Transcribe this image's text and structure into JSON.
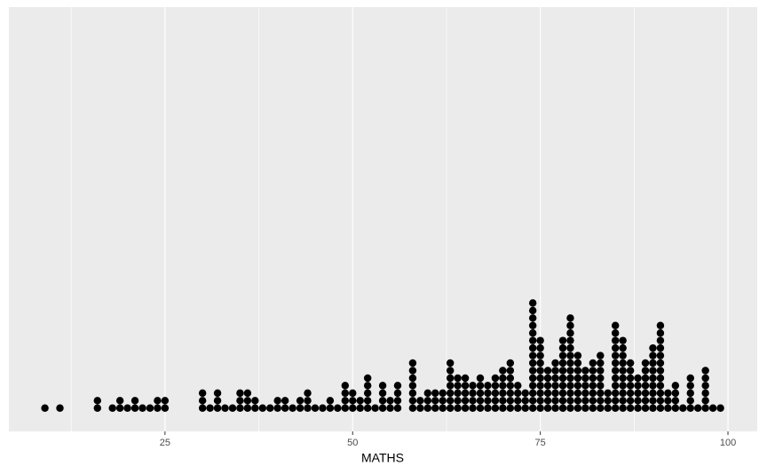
{
  "chart_data": {
    "type": "dotplot",
    "x_label": "MATHS",
    "x": [
      9,
      11,
      16,
      18,
      19,
      20,
      21,
      22,
      23,
      24,
      25,
      30,
      31,
      32,
      33,
      34,
      35,
      36,
      37,
      38,
      39,
      40,
      41,
      42,
      43,
      44,
      45,
      46,
      47,
      48,
      49,
      50,
      51,
      52,
      53,
      54,
      55,
      56,
      58,
      59,
      60,
      61,
      62,
      63,
      64,
      65,
      66,
      67,
      68,
      69,
      70,
      71,
      72,
      73,
      74,
      75,
      76,
      77,
      78,
      79,
      80,
      81,
      82,
      83,
      84,
      85,
      86,
      87,
      88,
      89,
      90,
      91,
      92,
      93,
      94,
      95,
      96,
      97,
      98,
      99
    ],
    "counts": [
      1,
      1,
      2,
      1,
      2,
      1,
      2,
      1,
      1,
      2,
      2,
      3,
      1,
      3,
      1,
      1,
      3,
      3,
      2,
      1,
      1,
      2,
      2,
      1,
      2,
      3,
      1,
      1,
      2,
      1,
      4,
      3,
      2,
      5,
      1,
      4,
      2,
      4,
      7,
      2,
      3,
      3,
      3,
      7,
      5,
      5,
      4,
      5,
      4,
      5,
      6,
      7,
      4,
      3,
      15,
      10,
      6,
      7,
      10,
      13,
      8,
      6,
      7,
      8,
      3,
      12,
      10,
      7,
      5,
      7,
      9,
      12,
      3,
      4,
      1,
      5,
      1,
      6,
      1,
      1
    ],
    "binwidth": 1,
    "color": "#000000",
    "xlim": [
      4.2,
      103.9
    ],
    "xticks": [
      25,
      50,
      75,
      100
    ],
    "xminorticks": [
      12.5,
      37.5,
      62.5,
      87.5
    ],
    "grid": true
  }
}
